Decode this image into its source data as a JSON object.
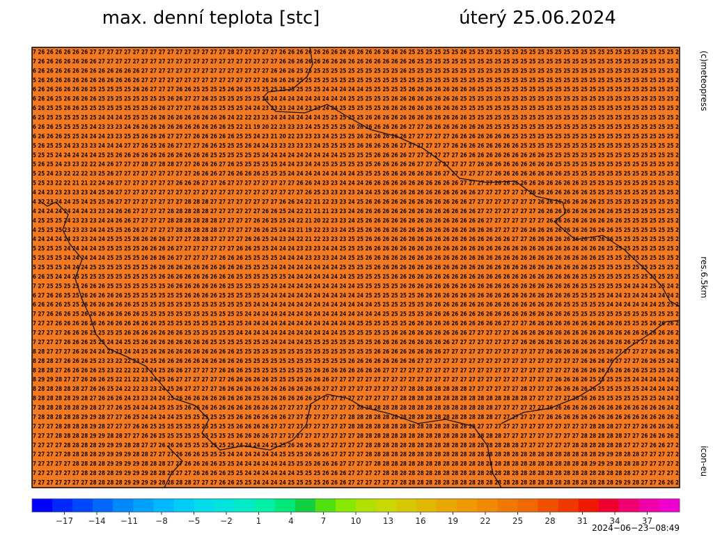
{
  "header": {
    "title": "max. denní teplota [stc]",
    "date": "úterý 25.06.2024"
  },
  "side_labels": {
    "copyright": "(c)meteopress",
    "resolution": "res.6.5km",
    "model": "icon-eu"
  },
  "timestamp": "2024−06−23−08:49",
  "map": {
    "background": "#f47a22",
    "rows": [
      "7 26 26 26 26 26 26 27 27 27 27 27 27 27 27 27 27 27 27 27 27 27 27 28 27 27 27 27 27 26 26 26 26 26 26 26 26 26 26 26 26 26 26 26 25 25 25 25 25 25 26 25 25 25 25 25 25 25 25 25 25 25 25 25 25 25 25 25 25 25 25 25 25 25 25 2",
      "7 26 26 26 26 26 26 26 27 27 27 27 27 27 27 27 27 27 27 27 27 27 27 27 27 27 27 27 27 26 26 26 26 26 26 26 26 26 26 26 26 26 26 26 26 25 25 25 25 25 25 25 25 25 25 25 25 25 25 25 25 25 25 25 25 25 25 25 25 25 25 25 25 25 25 2",
      "6 26 26 26 26 26 26 26 26 26 26 26 26 27 27 27 27 27 27 27 27 27 27 27 27 27 27 27 26 26 26 25 25 25 25 25 25 25 25 25 25 25 25 26 25 25 25 25 25 25 25 25 25 25 25 25 25 25 25 25 25 25 25 25 25 25 25 25 25 25 25 25 25 25 25 2",
      "5 26 26 26 26 26 26 26 26 26 26 26 26 27 27 27 27 27 27 27 27 27 27 27 27 27 27 26 26 26 26 25 25 25 25 25 25 25 25 25 25 25 25 25 25 25 25 25 25 25 25 25 25 25 25 25 25 25 25 25 25 25 25 25 25 25 25 25 25 25 25 25 25 25 25 2",
      "6 26 26 26 26 26 26 25 25 25 25 25 26 26 27 27 27 26 26 25 25 25 25 26 26 25 25 25 25 25 25 25 25 25 24 24 24 24 24 25 25 25 25 25 26 26 26 26 26 26 26 26 25 25 25 25 25 25 25 25 25 25 25 25 25 25 25 25 25 25 25 25 25 25 25 2",
      "6 26 26 25 26 26 26 26 25 25 25 25 25 25 25 25 26 26 27 27 26 25 25 25 25 25 25 24 24 24 24 24 24 24 24 24 24 25 25 25 25 25 26 26 26 26 26 26 26 26 25 25 25 25 25 25 25 25 25 25 25 25 25 25 25 25 25 25 25 25 25 25 25 25 25 2",
      "6 26 25 25 26 26 25 25 25 25 25 25 25 25 26 26 27 27 27 26 26 25 25 25 25 24 24 23 23 23 24 24 23 23 24 24 25 25 25 25 25 26 26 26 26 26 26 26 26 26 25 25 25 25 25 25 25 25 25 25 25 25 25 25 25 25 25 25 25 25 25 25 25 25 25 2",
      "6 25 25 25 25 25 25 25 24 24 24 25 25 25 26 26 26 26 26 26 26 26 26 24 22 22 23 23 24 24 24 24 24 24 25 25 25 25 25 26 26 26 26 26 26 26 26 26 26 26 26 25 25 25 25 25 25 25 25 25 25 25 25 25 25 25 25 25 25 25 25 25 25 25 25 2",
      "6 26 26 25 25 25 25 24 23 23 23 24 26 26 26 26 26 26 26 26 26 26 26 25 22 21 19 20 22 23 23 23 24 25 25 25 25 26 26 26 26 26 26 26 27 27 26 26 26 26 26 26 26 25 25 25 25 25 25 25 25 25 25 25 25 25 25 25 25 25 25 25 25 25 25 2",
      "6 26 26 26 25 25 24 24 24 23 23 25 25 26 26 26 27 27 27 26 26 26 26 26 25 25 24 23 21 20 22 23 23 23 24 25 25 25 26 26 26 26 26 26 27 27 27 27 27 26 26 26 26 26 26 26 25 25 25 25 25 25 25 25 25 25 25 25 25 25 25 25 25 25 25 2",
      "5 26 25 25 24 23 23 23 24 24 24 27 27 26 25 26 26 27 27 27 26 26 25 25 25 26 24 24 23 23 23 23 23 24 25 25 25 25 26 26 26 26 26 27 27 27 27 27 27 26 26 26 26 26 26 26 26 25 25 25 25 25 25 25 25 25 25 25 25 25 25 25 25 25 25 2",
      "5 25 25 24 24 24 24 24 25 25 26 26 26 26 26 26 26 26 26 26 26 25 25 25 25 25 25 24 24 24 24 24 24 24 24 24 25 25 25 25 26 26 26 26 27 27 27 27 27 27 26 26 26 26 26 26 26 26 26 26 25 25 25 25 25 25 25 25 25 25 25 25 25 25 25 2",
      "5 26 25 24 23 23 22 22 24 26 27 27 27 28 27 28 28 27 27 26 26 26 27 26 25 25 25 25 25 24 24 23 24 24 25 25 25 25 25 25 26 26 26 26 26 27 27 27 27 27 27 27 26 26 26 26 26 26 26 26 26 25 25 25 25 25 25 25 25 25 25 25 25 25 25 2",
      "5 25 24 23 22 22 22 23 25 26 27 27 27 27 27 27 27 27 27 26 26 26 27 26 26 26 26 25 25 25 24 24 24 24 24 24 24 24 25 25 25 26 26 26 26 26 26 26 27 27 27 27 27 27 26 26 26 26 26 26 26 26 25 25 25 25 25 25 25 25 25 25 25 25 25 2",
      "5 25 23 22 22 21 21 22 24 26 27 27 27 27 27 27 27 26 26 26 27 27 26 27 27 27 27 27 27 27 27 26 26 24 23 23 24 24 24 26 26 26 26 26 26 26 26 26 26 26 27 27 27 27 26 26 26 26 26 26 26 26 26 26 25 25 25 25 25 25 25 25 25 25 25 2",
      "4 24 23 23 23 23 23 24 25 26 27 27 27 27 27 27 27 27 27 27 27 27 27 27 27 27 27 27 27 27 27 27 26 25 23 23 23 23 24 24 25 26 26 26 26 26 26 26 26 26 26 26 27 27 27 27 27 27 26 26 26 26 26 26 26 25 25 25 25 25 25 25 25 25 25 2",
      "4 22 23 24 24 25 24 25 25 26 27 27 27 27 27 27 27 27 28 28 28 27 27 27 27 27 27 27 27 26 26 24 22 21 22 23 23 24 25 26 26 26 26 26 26 26 26 26 26 26 26 27 27 27 27 27 27 27 27 26 26 26 26 26 26 26 25 25 25 25 25 25 25 25 25 2",
      "4 24 24 24 24 24 24 23 23 24 26 26 27 27 27 27 28 28 28 28 28 27 27 27 27 27 27 26 26 25 24 22 21 21 21 23 23 24 26 26 26 26 26 26 26 26 26 26 26 26 26 26 27 27 27 27 27 27 27 26 26 26 26 26 26 26 26 26 25 25 25 25 25 25 25 2",
      "4 25 25 25 24 23 23 23 24 24 26 26 27 27 27 27 28 28 28 28 28 28 27 27 27 27 26 26 25 25 24 22 21 20 22 23 23 24 25 26 26 26 26 26 26 26 26 26 26 26 26 26 26 27 27 27 27 27 27 27 26 26 26 26 26 26 26 26 26 25 25 25 25 25 25 2",
      "4 25 25 25 23 23 23 24 24 25 25 26 26 27 27 27 27 28 28 28 28 28 27 27 27 27 26 26 25 24 23 21 19 22 23 23 24 25 25 26 26 26 26 26 26 26 26 26 26 26 26 26 26 26 27 27 27 26 26 26 26 26 26 26 26 26 26 26 25 25 25 25 25 25 25 2",
      "4 24 24 24 24 23 23 24 24 25 25 25 26 26 26 26 27 27 27 28 28 27 27 27 27 26 26 25 24 23 24 22 21 22 23 23 23 25 25 26 26 26 26 26 26 26 26 26 26 26 26 26 26 26 26 26 27 27 26 26 26 26 26 26 26 26 26 26 25 25 25 25 25 25 25 2",
      "5 25 25 25 24 24 24 24 25 25 25 25 25 26 26 26 26 27 27 27 27 27 27 27 26 26 25 25 24 24 24 23 23 23 24 24 25 25 25 26 26 26 26 26 26 26 26 26 26 26 26 26 26 26 26 26 26 26 26 26 26 26 26 26 26 26 26 25 25 25 25 25 25 25 25 2",
      "5 25 25 25 24 24 24 24 24 25 25 25 25 26 26 26 26 27 27 27 27 27 26 26 26 25 25 25 25 24 24 24 23 23 23 24 24 25 25 26 26 26 26 26 26 26 26 26 26 26 26 26 26 26 26 26 26 26 26 26 26 26 26 26 26 26 25 25 25 25 25 25 25 25 25 2",
      "5 25 25 25 24 24 24 25 25 25 25 25 25 25 26 26 26 26 26 26 26 26 26 26 26 25 25 25 24 24 24 24 24 24 24 24 25 25 25 25 26 26 26 26 26 26 26 26 26 26 26 26 26 26 26 26 26 26 26 26 26 26 26 26 26 25 25 25 25 25 25 25 25 25 25 2",
      "6 26 25 24 24 25 25 25 25 25 25 25 25 25 25 26 26 26 26 26 26 26 26 26 25 25 25 25 25 25 24 24 24 24 24 24 24 25 25 25 25 25 26 26 26 26 26 26 26 26 26 26 26 26 26 26 26 26 26 26 26 26 26 26 25 25 25 25 25 25 25 25 25 25 25 2",
      "7 27 25 25 25 25 26 26 26 25 25 25 25 25 25 25 26 26 26 26 26 26 26 25 25 25 25 25 24 24 24 24 24 24 24 24 24 24 25 25 25 25 25 26 26 26 26 26 26 26 26 26 26 26 26 26 26 26 26 26 26 26 26 26 25 25 25 25 25 24 24 24 25 25 24 2",
      "6 27 26 26 25 25 26 26 26 26 26 25 25 25 25 25 25 25 26 26 26 26 25 25 25 25 25 24 24 24 24 24 24 24 24 24 24 24 24 25 25 25 25 25 25 26 26 26 26 26 26 26 26 26 26 26 26 26 26 26 26 26 26 25 25 25 25 24 24 23 24 24 24 24 24 2",
      "6 26 26 26 25 25 26 26 26 26 26 26 25 25 25 25 25 25 25 25 25 25 25 25 25 25 24 24 24 24 24 24 24 24 24 24 24 24 24 24 25 25 25 25 25 25 26 26 26 26 26 26 26 26 26 26 26 26 26 26 26 26 25 25 25 25 25 24 24 24 24 24 24 25 25 2",
      "7 27 26 26 26 25 26 26 26 26 26 26 26 25 25 25 25 25 25 25 25 25 25 25 25 24 24 24 24 24 24 24 24 24 24 24 24 24 24 24 24 25 25 25 25 25 26 26 26 26 26 26 26 26 26 26 26 26 26 26 26 26 26 25 25 25 25 25 25 25 25 25 25 25 25 2",
      "7 27 27 26 26 26 26 26 26 26 26 26 26 26 26 25 25 25 25 25 25 25 25 25 25 24 24 24 24 24 24 24 24 24 24 24 24 24 25 25 25 25 25 25 26 26 26 26 26 26 26 26 26 26 26 27 27 27 26 26 26 26 26 26 26 26 26 26 26 25 25 25 26 26 26 2",
      "7 27 27 27 26 26 26 25 25 25 25 26 26 26 26 26 26 26 25 25 25 25 25 25 24 24 24 24 24 24 24 24 24 24 24 24 25 25 25 25 25 25 26 26 26 26 26 26 26 26 26 27 27 27 27 27 26 26 26 26 26 26 26 26 26 26 26 26 26 26 26 26 26 26 26 2",
      "7 27 27 27 26 26 26 25 25 24 24 25 25 26 26 26 26 26 26 26 26 25 25 25 25 25 25 25 24 24 24 24 25 25 25 25 25 25 25 25 26 26 26 26 26 26 26 26 26 27 27 27 27 27 27 27 27 26 26 26 26 26 26 26 26 26 26 26 26 26 27 27 26 26 26 2",
      "8 28 27 27 27 26 26 24 24 23 23 24 24 25 26 26 26 26 26 26 26 26 26 26 25 25 25 25 25 25 25 25 25 25 25 25 25 25 25 25 26 26 26 26 26 26 26 26 27 27 27 27 27 27 27 27 27 27 27 27 26 26 26 26 26 26 25 26 27 27 27 27 26 26 26 2",
      "8 28 28 27 26 26 26 25 23 23 22 22 23 24 25 26 26 26 26 26 26 26 26 26 26 25 25 25 25 25 25 25 25 25 25 25 25 26 26 26 26 26 26 26 26 27 27 27 27 27 27 27 27 27 27 27 27 27 27 27 27 27 27 27 26 26 26 26 27 27 27 26 26 25 24 2",
      "8 28 28 27 26 26 26 26 25 23 22 22 22 23 24 25 26 26 27 27 27 27 26 26 26 25 25 25 25 25 25 25 25 26 26 26 26 26 26 26 26 27 27 27 27 27 27 27 27 27 27 27 27 27 27 27 27 27 27 27 27 27 27 26 26 26 26 26 26 26 26 25 25 25 24 2",
      "8 29 29 28 27 27 26 26 26 25 22 21 22 23 24 25 26 27 27 27 27 27 27 26 26 26 26 26 25 25 25 25 26 26 26 27 27 27 27 27 27 27 27 27 27 27 27 27 27 27 27 27 27 27 27 27 27 27 27 27 27 26 26 26 26 25 25 25 25 25 24 24 24 24 24 2",
      "8 28 28 28 28 28 27 26 26 25 24 22 22 23 23 24 25 26 27 27 27 27 26 26 26 26 26 26 26 26 26 26 26 26 27 27 27 27 27 27 27 27 27 27 28 28 28 28 28 28 28 27 27 27 27 27 27 28 27 27 27 26 26 26 26 26 25 25 25 25 25 24 24 24 24 2",
      "8 28 28 28 28 29 28 27 26 26 26 24 23 23 24 24 25 26 26 26 26 26 26 26 26 26 25 26 26 26 26 26 26 27 27 27 27 27 27 27 27 27 27 28 28 28 28 28 28 28 28 28 28 28 28 28 28 28 27 27 27 27 27 26 26 26 25 25 25 25 25 25 25 24 24 2",
      "7 28 28 28 28 28 29 28 27 27 26 25 24 24 24 25 25 25 26 26 26 26 26 26 26 26 26 26 26 27 27 27 27 27 27 27 27 27 28 28 28 28 28 28 28 28 28 28 28 28 28 28 28 28 27 27 27 27 27 27 26 26 26 26 26 26 26 26 26 26 26 26 26 26 24 2",
      "7 28 28 28 28 28 29 29 28 27 27 26 25 24 24 24 24 25 25 25 25 25 25 25 26 26 26 26 26 26 27 27 27 27 27 27 27 28 28 28 28 28 28 28 28 28 28 28 28 28 28 28 28 28 27 27 27 27 27 27 26 26 26 26 26 26 26 26 26 26 26 26 26 26 26 2",
      "7 27 27 28 28 28 28 29 28 27 27 27 26 26 25 25 25 25 25 25 25 25 25 25 26 26 26 26 27 27 27 27 27 27 27 27 27 28 28 28 28 28 28 28 28 28 28 28 28 28 28 28 27 27 27 27 27 27 27 27 27 27 27 27 27 28 28 28 27 27 27 26 26 26 26 2",
      "7 27 27 28 28 28 28 29 29 28 28 27 27 26 26 25 25 25 25 25 25 25 25 25 26 26 26 26 27 27 27 27 27 27 27 27 27 27 28 28 28 28 28 28 28 28 28 28 28 28 28 28 28 28 28 27 27 27 27 27 27 27 27 27 28 28 28 28 28 27 27 26 26 26 26 2",
      "7 27 27 27 28 28 28 28 29 29 29 28 28 27 27 26 26 26 25 25 25 25 25 25 24 24 24 24 25 25 26 26 26 26 27 27 27 27 27 28 28 28 28 28 28 28 28 28 28 28 28 28 28 28 28 28 28 27 27 27 27 27 27 28 28 28 28 28 28 27 27 27 26 26 27 2",
      "7 27 27 27 28 28 28 28 29 29 29 29 28 28 27 27 27 26 26 26 25 25 25 24 24 24 24 24 24 25 25 25 26 26 26 27 27 27 27 28 28 28 28 28 28 28 28 28 28 28 28 28 28 28 28 28 28 28 28 28 28 28 28 28 28 28 29 29 28 28 28 27 27 27 27 2",
      "7 27 27 27 27 28 28 28 28 29 29 29 29 28 28 28 27 27 26 26 26 26 25 25 24 24 24 24 24 24 25 25 25 26 26 26 27 27 27 27 28 28 28 28 28 28 28 28 28 28 28 28 28 28 28 28 28 28 28 28 28 28 28 28 28 29 29 29 28 28 28 27 27 27 27 2",
      "7 27 27 27 27 27 28 28 28 28 29 29 29 29 28 28 28 27 27 26 26 26 26 25 25 24 24 24 24 24 24 25 25 25 26 26 26 27 27 27 27 28 28 28 28 28 28 28 28 28 28 28 28 28 28 28 28 28 28 28 28 28 28 28 28 28 28 28 28 28 27 27 27 27 27 2",
      "7 27 27 27 27 27 27 28 28 28 28 29 29 29 29 28 28 28 28 27 27 27 26 26 25 25 24 24 24 24 25 25 25 25 26 26 26 27 27 27 27 27 27 28 28 28 28 28 28 28 28 28 28 28 28 28 28 28 28 28 28 28 28 28 28 28 28 28 29 29 28 27 27 26 26 2"
    ]
  },
  "legend": {
    "range": [
      -20,
      40
    ],
    "colors": [
      "#0000ff",
      "#0028ff",
      "#0048ff",
      "#0068ff",
      "#0088ff",
      "#00a0ff",
      "#00b8ff",
      "#00ccf8",
      "#00dcec",
      "#00e4dc",
      "#00ecc8",
      "#00f0a8",
      "#00e878",
      "#10d040",
      "#50e010",
      "#88e800",
      "#b0e000",
      "#c8d800",
      "#d8c800",
      "#e0b800",
      "#e8a800",
      "#f09800",
      "#f08800",
      "#f07800",
      "#f06800",
      "#f05000",
      "#f03800",
      "#f01800",
      "#f00030",
      "#f00070",
      "#f000a8",
      "#f000d0"
    ],
    "ticks": [
      {
        "value": -17,
        "label": "−17"
      },
      {
        "value": -14,
        "label": "−14"
      },
      {
        "value": -11,
        "label": "−11"
      },
      {
        "value": -8,
        "label": "−8"
      },
      {
        "value": -5,
        "label": "−5"
      },
      {
        "value": -2,
        "label": "−2"
      },
      1,
      4,
      7,
      10,
      13,
      16,
      19,
      22,
      25,
      28,
      31,
      34,
      37
    ]
  }
}
